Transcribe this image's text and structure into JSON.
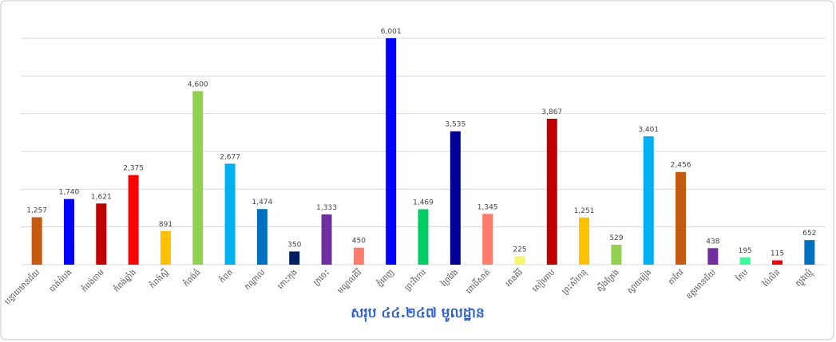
{
  "chart_data": {
    "type": "bar",
    "title": "សរុប ៤៤.២៤៧ មូលដ្ឋាន",
    "categories": [
      "បន្ទាយមានជ័យ",
      "បាត់ដំបង",
      "កំពង់ចាម",
      "កំពង់ឆ្នាំង",
      "កំពង់ស្ពឺ",
      "កំពង់ធំ",
      "កំពត",
      "កណ្ដាល",
      "កោះកុង",
      "ក្រចេះ",
      "មណ្ឌលគិរី",
      "ភ្នំពេញ",
      "ព្រះវិហារ",
      "ព្រៃវែង",
      "ពោធិ៍សាត់",
      "រតនគិរី",
      "សៀមរាប",
      "ព្រះសីហនុ",
      "ស្ទឹងត្រែង",
      "ស្វាយរៀង",
      "តាកែវ",
      "ឧត្ដរមានជ័យ",
      "កែប",
      "ប៉ៃលិន",
      "ត្បូងឃ្មុំ"
    ],
    "values": [
      1257,
      1740,
      1621,
      2375,
      891,
      4600,
      2677,
      1474,
      350,
      1333,
      450,
      6001,
      1469,
      3535,
      1345,
      225,
      3867,
      1251,
      529,
      3401,
      2456,
      438,
      195,
      115,
      652
    ],
    "value_labels": [
      "1,257",
      "1,740",
      "1,621",
      "2,375",
      "891",
      "4,600",
      "2,677",
      "1,474",
      "350",
      "1,333",
      "450",
      "6,001",
      "1,469",
      "3,535",
      "1,345",
      "225",
      "3,867",
      "1,251",
      "529",
      "3,401",
      "2,456",
      "438",
      "195",
      "115",
      "652"
    ],
    "colors": [
      "#c55a11",
      "#0000ff",
      "#c00000",
      "#ff0000",
      "#ffc000",
      "#92d050",
      "#00b0f0",
      "#0070c0",
      "#002060",
      "#7030a0",
      "#ff7c6c",
      "#0000ff",
      "#00cc66",
      "#000099",
      "#ff7c6c",
      "#f5f56e",
      "#c00000",
      "#ffc000",
      "#92d050",
      "#00b0f0",
      "#c55a11",
      "#7030a0",
      "#33ff99",
      "#ff0000",
      "#0070c0"
    ],
    "ylim": [
      0,
      6000
    ],
    "yticks": [
      0,
      1000,
      2000,
      3000,
      4000,
      5000,
      6000
    ],
    "grid": true
  }
}
